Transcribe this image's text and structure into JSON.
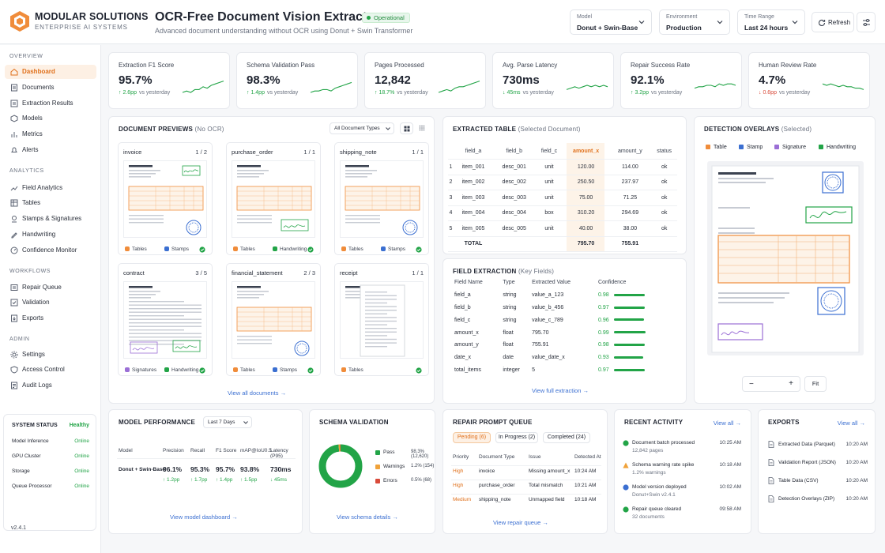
{
  "brand": {
    "name": "MODULAR SOLUTIONS",
    "sub": "ENTERPRISE AI SYSTEMS"
  },
  "page": {
    "title": "OCR-Free Document Vision Extractor",
    "status": "Operational",
    "subtitle": "Advanced document understanding without OCR using Donut + Swin Transformer"
  },
  "controls": {
    "model_label": "Model",
    "model_value": "Donut + Swin-Base",
    "env_label": "Environment",
    "env_value": "Production",
    "time_label": "Time Range",
    "time_value": "Last 24 hours",
    "refresh": "Refresh"
  },
  "sidebar": {
    "sections": [
      "OVERVIEW",
      "ANALYTICS",
      "WORKFLOWS",
      "ADMIN"
    ],
    "items": [
      "Dashboard",
      "Documents",
      "Extraction Results",
      "Models",
      "Metrics",
      "Alerts",
      "Field Analytics",
      "Tables",
      "Stamps & Signatures",
      "Handwriting",
      "Confidence Monitor",
      "Repair Queue",
      "Validation",
      "Exports",
      "Settings",
      "Access Control",
      "Audit Logs"
    ],
    "status_title": "SYSTEM STATUS",
    "status_value": "Healthy",
    "services": [
      {
        "name": "Model Inference",
        "state": "Online"
      },
      {
        "name": "GPU Cluster",
        "state": "Online"
      },
      {
        "name": "Storage",
        "state": "Online"
      },
      {
        "name": "Queue Processor",
        "state": "Online"
      }
    ],
    "version": "v2.4.1"
  },
  "kpis": [
    {
      "label": "Extraction F1 Score",
      "value": "95.7%",
      "delta": "↑ 2.6pp",
      "suffix": "vs yesterday",
      "dir": "up"
    },
    {
      "label": "Schema Validation Pass",
      "value": "98.3%",
      "delta": "↑ 1.4pp",
      "suffix": "vs yesterday",
      "dir": "up"
    },
    {
      "label": "Pages Processed",
      "value": "12,842",
      "delta": "↑ 18.7%",
      "suffix": "vs yesterday",
      "dir": "up"
    },
    {
      "label": "Avg. Parse Latency",
      "value": "730ms",
      "delta": "↓ 45ms",
      "suffix": "vs yesterday",
      "dir": "up"
    },
    {
      "label": "Repair Success Rate",
      "value": "92.1%",
      "delta": "↑ 3.2pp",
      "suffix": "vs yesterday",
      "dir": "up"
    },
    {
      "label": "Human Review Rate",
      "value": "4.7%",
      "delta": "↓ 0.6pp",
      "suffix": "vs yesterday",
      "dir": "dn"
    }
  ],
  "previews": {
    "title": "DOCUMENT PREVIEWS",
    "note": "(No OCR)",
    "filter": "All Document Types",
    "view_all": "View all documents",
    "docs": [
      {
        "name": "invoice",
        "page": "1 / 2",
        "tags": [
          "Tables",
          "Stamps"
        ]
      },
      {
        "name": "purchase_order",
        "page": "1 / 1",
        "tags": [
          "Tables",
          "Handwriting"
        ]
      },
      {
        "name": "shipping_note",
        "page": "1 / 1",
        "tags": [
          "Tables",
          "Stamps"
        ]
      },
      {
        "name": "contract",
        "page": "3 / 5",
        "tags": [
          "Signatures",
          "Handwriting"
        ]
      },
      {
        "name": "financial_statement",
        "page": "2 / 3",
        "tags": [
          "Tables",
          "Stamps"
        ]
      },
      {
        "name": "receipt",
        "page": "1 / 1",
        "tags": [
          "Tables"
        ]
      }
    ]
  },
  "extracted": {
    "title": "EXTRACTED TABLE",
    "note": "(Selected Document)",
    "headers": [
      "",
      "field_a",
      "field_b",
      "field_c",
      "amount_x",
      "amount_y",
      "status"
    ],
    "rows": [
      [
        "1",
        "item_001",
        "desc_001",
        "unit",
        "120.00",
        "114.00",
        "ok"
      ],
      [
        "2",
        "item_002",
        "desc_002",
        "unit",
        "250.50",
        "237.97",
        "ok"
      ],
      [
        "3",
        "item_003",
        "desc_003",
        "unit",
        "75.00",
        "71.25",
        "ok"
      ],
      [
        "4",
        "item_004",
        "desc_004",
        "box",
        "310.20",
        "294.69",
        "ok"
      ],
      [
        "5",
        "item_005",
        "desc_005",
        "unit",
        "40.00",
        "38.00",
        "ok"
      ]
    ],
    "total": [
      "",
      "TOTAL",
      "",
      "",
      "795.70",
      "755.91",
      ""
    ]
  },
  "fields": {
    "title": "FIELD EXTRACTION",
    "note": "(Key Fields)",
    "headers": [
      "Field Name",
      "Type",
      "Extracted Value",
      "Confidence"
    ],
    "view_all": "View full extraction",
    "rows": [
      [
        "field_a",
        "string",
        "value_a_123",
        "0.98",
        0.98
      ],
      [
        "field_b",
        "string",
        "value_b_456",
        "0.97",
        0.97
      ],
      [
        "field_c",
        "string",
        "value_c_789",
        "0.96",
        0.96
      ],
      [
        "amount_x",
        "float",
        "795.70",
        "0.99",
        0.99
      ],
      [
        "amount_y",
        "float",
        "755.91",
        "0.98",
        0.98
      ],
      [
        "date_x",
        "date",
        "value_date_x",
        "0.93",
        0.93
      ],
      [
        "total_items",
        "integer",
        "5",
        "0.97",
        0.97
      ]
    ]
  },
  "overlays": {
    "title": "DETECTION OVERLAYS",
    "note": "(Selected)",
    "legend": [
      {
        "name": "Table",
        "color": "#f08c3a"
      },
      {
        "name": "Stamp",
        "color": "#3b6fd1"
      },
      {
        "name": "Signature",
        "color": "#9b6fd6"
      },
      {
        "name": "Handwriting",
        "color": "#22a447"
      }
    ],
    "fit": "Fit",
    "minus": "−",
    "plus": "+"
  },
  "perf": {
    "title": "MODEL PERFORMANCE",
    "range": "Last 7 Days",
    "headers": [
      "Model",
      "Precision",
      "Recall",
      "F1 Score",
      "mAP@IoU0.5",
      "Latency (P95)"
    ],
    "row": [
      "Donut + Swin-Base",
      "96.1%",
      "95.3%",
      "95.7%",
      "93.8%",
      "730ms"
    ],
    "deltas": [
      "",
      "↑ 1.2pp",
      "↑ 1.7pp",
      "↑ 1.4pp",
      "↑ 1.5pp",
      "↓ 45ms"
    ],
    "link": "View model dashboard"
  },
  "schema": {
    "title": "SCHEMA VALIDATION",
    "link": "View schema details",
    "items": [
      {
        "name": "Pass",
        "value": "98.3% (12,620)",
        "color": "#22a447",
        "pct": 98.3
      },
      {
        "name": "Warnings",
        "value": "1.2% (154)",
        "color": "#f0a23a",
        "pct": 1.2
      },
      {
        "name": "Errors",
        "value": "0.5% (68)",
        "color": "#d94a3a",
        "pct": 0.5
      }
    ]
  },
  "repair": {
    "title": "REPAIR PROMPT QUEUE",
    "tabs": [
      "Pending (6)",
      "In Progress (2)",
      "Completed (24)"
    ],
    "headers": [
      "Priority",
      "Document Type",
      "Issue",
      "Detected At"
    ],
    "rows": [
      [
        "High",
        "invoice",
        "Missing amount_x",
        "10:24 AM"
      ],
      [
        "High",
        "purchase_order",
        "Total mismatch",
        "10:21 AM"
      ],
      [
        "Medium",
        "shipping_note",
        "Unmapped field",
        "10:18 AM"
      ]
    ],
    "link": "View repair queue"
  },
  "activity": {
    "title": "RECENT ACTIVITY",
    "view_all": "View all",
    "items": [
      {
        "title": "Document batch processed",
        "sub": "12,842 pages",
        "time": "10:25 AM",
        "kind": "ok"
      },
      {
        "title": "Schema warning rate spike",
        "sub": "1.2% warnings",
        "time": "10:18 AM",
        "kind": "warn"
      },
      {
        "title": "Model version deployed",
        "sub": "Donut+Swin v2.4.1",
        "time": "10:02 AM",
        "kind": "info"
      },
      {
        "title": "Repair queue cleared",
        "sub": "32 documents",
        "time": "09:58 AM",
        "kind": "ok"
      }
    ]
  },
  "exports": {
    "title": "EXPORTS",
    "view_all": "View all",
    "items": [
      {
        "name": "Extracted Data (Parquet)",
        "time": "10:20 AM"
      },
      {
        "name": "Validation Report (JSON)",
        "time": "10:20 AM"
      },
      {
        "name": "Table Data (CSV)",
        "time": "10:20 AM"
      },
      {
        "name": "Detection Overlays (ZIP)",
        "time": "10:20 AM"
      }
    ]
  }
}
